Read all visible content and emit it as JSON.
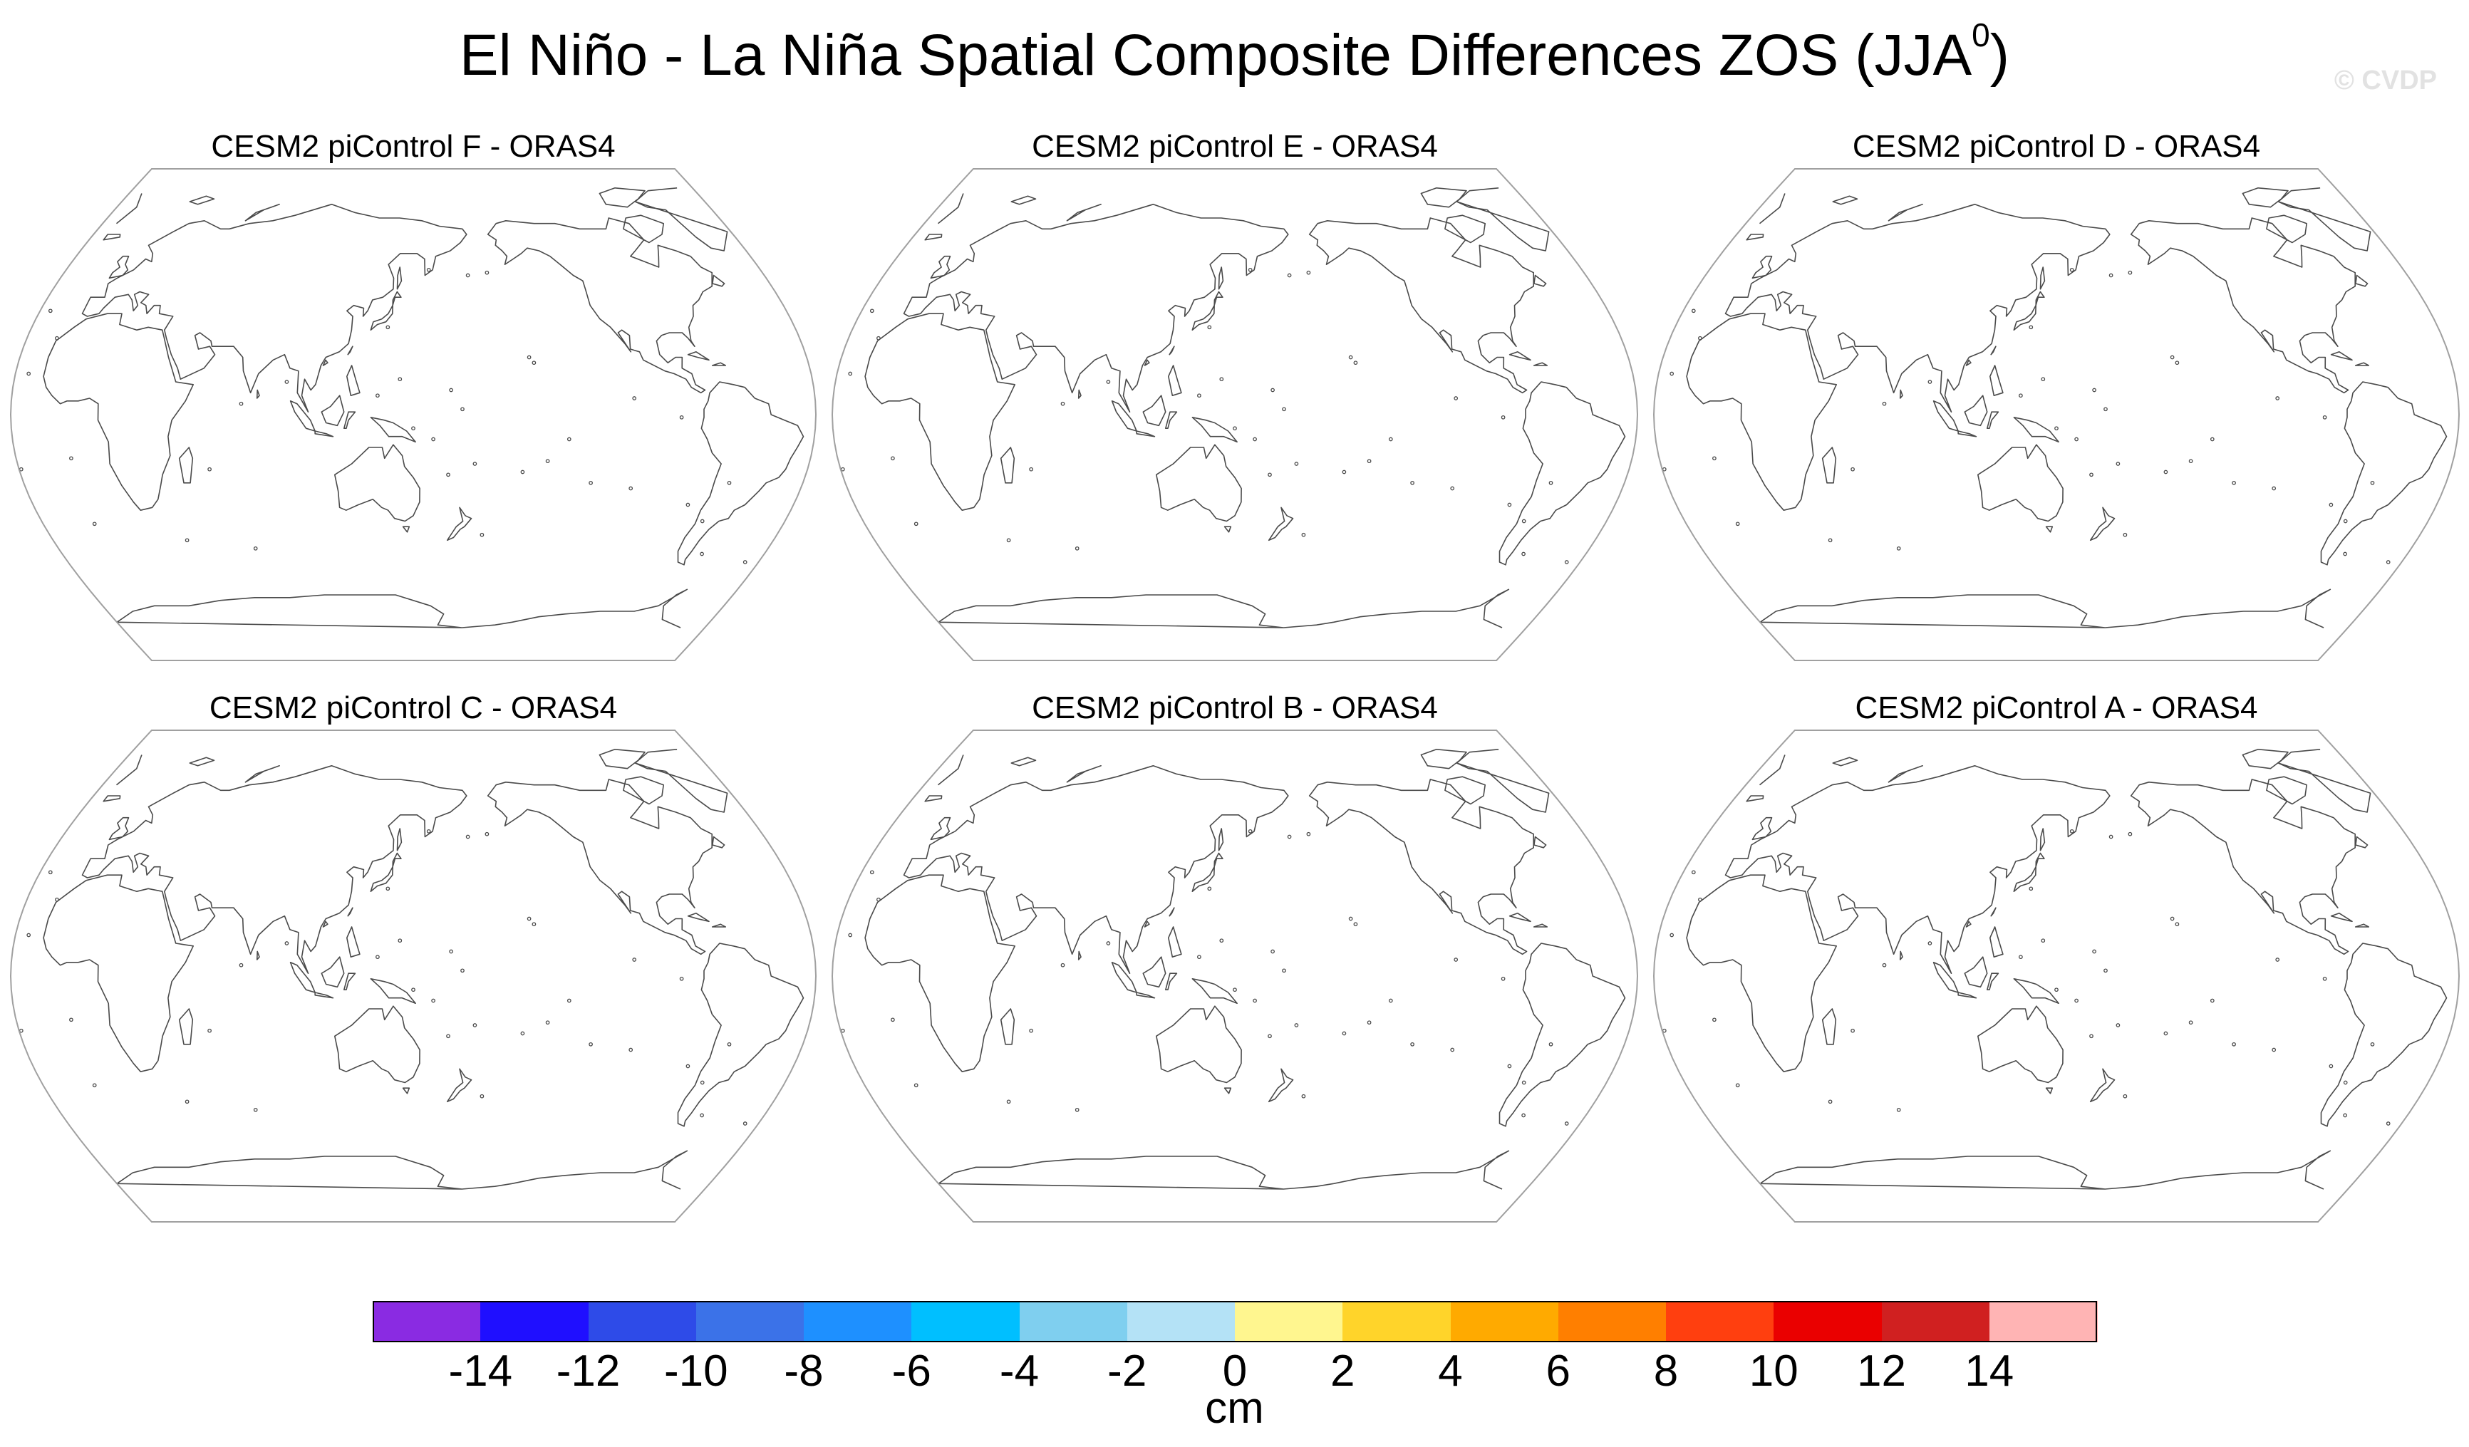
{
  "figure": {
    "title": "El Niño - La Niña Spatial Composite Differences ZOS (JJA",
    "title_superscript": "0",
    "title_close": ")",
    "watermark": "© CVDP"
  },
  "panels": [
    {
      "title": "CESM2 piControl F - ORAS4"
    },
    {
      "title": "CESM2 piControl E - ORAS4"
    },
    {
      "title": "CESM2 piControl D - ORAS4"
    },
    {
      "title": "CESM2 piControl C - ORAS4"
    },
    {
      "title": "CESM2 piControl B - ORAS4"
    },
    {
      "title": "CESM2 piControl A - ORAS4"
    }
  ],
  "colorbar": {
    "units": "cm",
    "labels": [
      "-14",
      "-12",
      "-10",
      "-8",
      "-6",
      "-4",
      "-2",
      "0",
      "2",
      "4",
      "6",
      "8",
      "10",
      "12",
      "14"
    ],
    "colors": [
      "#8a2be2",
      "#1f0fff",
      "#2e4be8",
      "#3b72e8",
      "#1e90ff",
      "#00bfff",
      "#7fcfef",
      "#b4e2f6",
      "#fff68f",
      "#ffd42a",
      "#ffaa00",
      "#ff7f00",
      "#ff3f0f",
      "#ea0000",
      "#d02020",
      "#ffb4b4"
    ]
  },
  "chart_data": {
    "type": "map",
    "title": "El Niño - La Niña Spatial Composite Differences ZOS (JJA0)",
    "projection": "Robinson, Pacific-centered",
    "panels": [
      "CESM2 piControl F - ORAS4",
      "CESM2 piControl E - ORAS4",
      "CESM2 piControl D - ORAS4",
      "CESM2 piControl C - ORAS4",
      "CESM2 piControl B - ORAS4",
      "CESM2 piControl A - ORAS4"
    ],
    "colorbar": {
      "units": "cm",
      "levels": [
        -14,
        -12,
        -10,
        -8,
        -6,
        -4,
        -2,
        0,
        2,
        4,
        6,
        8,
        10,
        12,
        14
      ]
    },
    "field_values_shown": "none (panels contain only coastlines)"
  }
}
